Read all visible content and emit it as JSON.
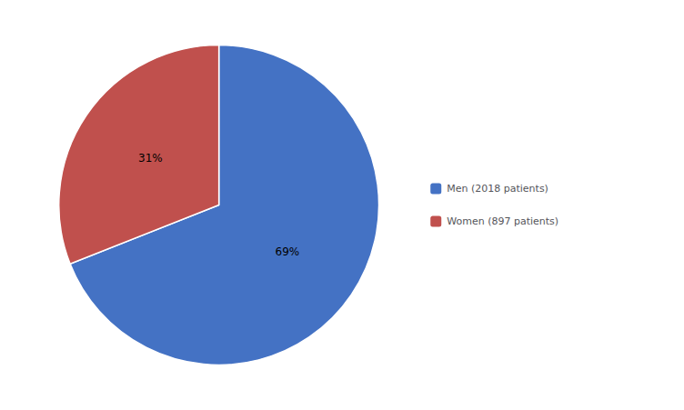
{
  "chart_data": {
    "type": "pie",
    "categories": [
      "Men (2018 patients)",
      "Women (897 patients)"
    ],
    "values": [
      69,
      31
    ],
    "value_labels": [
      "69%",
      "31%"
    ],
    "colors": [
      "#4472C4",
      "#C0504D"
    ],
    "data_labels": true,
    "legend": "right"
  }
}
